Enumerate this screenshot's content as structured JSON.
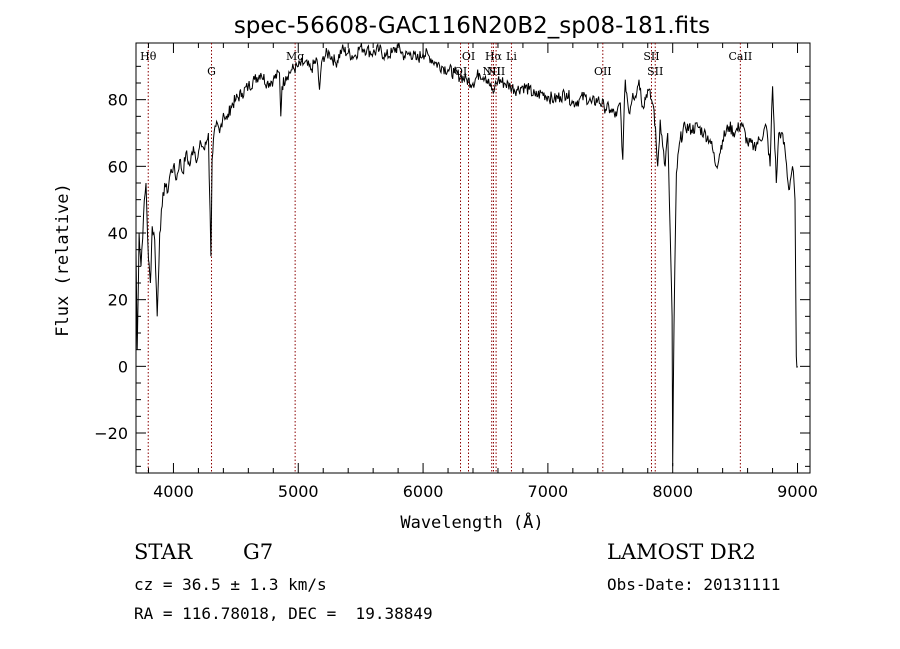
{
  "chart_data": {
    "type": "line",
    "title": "spec-56608-GAC116N20B2_sp08-181.fits",
    "xlabel": "Wavelength (Å)",
    "ylabel": "Flux (relative)",
    "xlim": [
      3700,
      9100
    ],
    "ylim": [
      -32,
      97
    ],
    "xticks": [
      4000,
      5000,
      6000,
      7000,
      8000,
      9000
    ],
    "yticks": [
      -20,
      0,
      20,
      40,
      60,
      80
    ],
    "grid": false,
    "line_color": "#000000",
    "marker_color": "#8b0000",
    "series": [
      {
        "x": [
          3700,
          3710,
          3725,
          3740,
          3760,
          3780,
          3800,
          3815,
          3830,
          3850,
          3870,
          3890,
          3910,
          3930,
          3950,
          3975,
          4000,
          4025,
          4050,
          4075,
          4100,
          4130,
          4160,
          4190,
          4220,
          4250,
          4280,
          4300,
          4310,
          4320,
          4340,
          4370,
          4400,
          4430,
          4460,
          4500,
          4550,
          4600,
          4650,
          4700,
          4750,
          4800,
          4850,
          4860,
          4870,
          4900,
          4950,
          5000,
          5050,
          5100,
          5150,
          5170,
          5180,
          5200,
          5250,
          5300,
          5350,
          5400,
          5450,
          5500,
          5550,
          5600,
          5650,
          5700,
          5750,
          5800,
          5850,
          5900,
          5950,
          6000,
          6050,
          6100,
          6150,
          6200,
          6250,
          6300,
          6350,
          6400,
          6450,
          6500,
          6550,
          6563,
          6575,
          6600,
          6650,
          6700,
          6750,
          6800,
          6850,
          6900,
          6950,
          7000,
          7050,
          7100,
          7150,
          7200,
          7250,
          7300,
          7350,
          7400,
          7450,
          7500,
          7550,
          7580,
          7600,
          7620,
          7650,
          7680,
          7700,
          7730,
          7760,
          7800,
          7830,
          7850,
          7880,
          7900,
          7920,
          7940,
          7960,
          7980,
          7995,
          8000,
          8010,
          8030,
          8060,
          8100,
          8150,
          8200,
          8250,
          8300,
          8350,
          8400,
          8450,
          8500,
          8550,
          8600,
          8650,
          8700,
          8750,
          8780,
          8800,
          8830,
          8850,
          8870,
          8900,
          8930,
          8960,
          8980,
          8990,
          9000
        ],
        "y": [
          35,
          5,
          40,
          30,
          45,
          55,
          32,
          25,
          42,
          38,
          15,
          40,
          48,
          55,
          52,
          58,
          60,
          56,
          62,
          58,
          64,
          60,
          66,
          62,
          67,
          65,
          70,
          33,
          62,
          68,
          72,
          70,
          76,
          74,
          78,
          80,
          82,
          84,
          86,
          88,
          85,
          86,
          88,
          75,
          84,
          87,
          89,
          90,
          91,
          89,
          92,
          83,
          88,
          93,
          94,
          91,
          95,
          94,
          93,
          96,
          95,
          94,
          95,
          93,
          94,
          96,
          93,
          94,
          92,
          94,
          93,
          91,
          90,
          89,
          88,
          87,
          86,
          85,
          88,
          87,
          83,
          82,
          84,
          86,
          85,
          84,
          83,
          84,
          83,
          81,
          82,
          81,
          80,
          81,
          82,
          79,
          80,
          81,
          79,
          80,
          78,
          77,
          75,
          79,
          62,
          86,
          76,
          82,
          81,
          86,
          78,
          83,
          80,
          77,
          60,
          74,
          66,
          60,
          70,
          40,
          15,
          -30,
          12,
          58,
          68,
          72,
          71,
          72,
          70,
          68,
          60,
          68,
          72,
          70,
          73,
          67,
          66,
          68,
          72,
          60,
          84,
          55,
          70,
          70,
          65,
          53,
          60,
          50,
          3,
          0
        ]
      }
    ],
    "lines": [
      {
        "label": "Hθ",
        "x": 3798
      },
      {
        "label": "G",
        "x": 4305
      },
      {
        "label": "Mg",
        "x": 4975
      },
      {
        "label": "OI",
        "x": 6300
      },
      {
        "label": "OI",
        "x": 6364
      },
      {
        "label": "NII",
        "x": 6550
      },
      {
        "label": "Hα",
        "x": 6564
      },
      {
        "label": "NII",
        "x": 6585
      },
      {
        "label": "Li",
        "x": 6708
      },
      {
        "label": "OII",
        "x": 7440
      },
      {
        "label": "SII",
        "x": 7830
      },
      {
        "label": "SII",
        "x": 7860
      },
      {
        "label": "CaII",
        "x": 8542
      }
    ]
  },
  "info": {
    "object_class": "STAR",
    "subclass": "G7",
    "cz": "cz = 36.5 ± 1.3 km/s",
    "coords": "RA = 116.78018, DEC =  19.38849",
    "survey": "LAMOST DR2",
    "obs_date": "Obs-Date: 20131111"
  }
}
